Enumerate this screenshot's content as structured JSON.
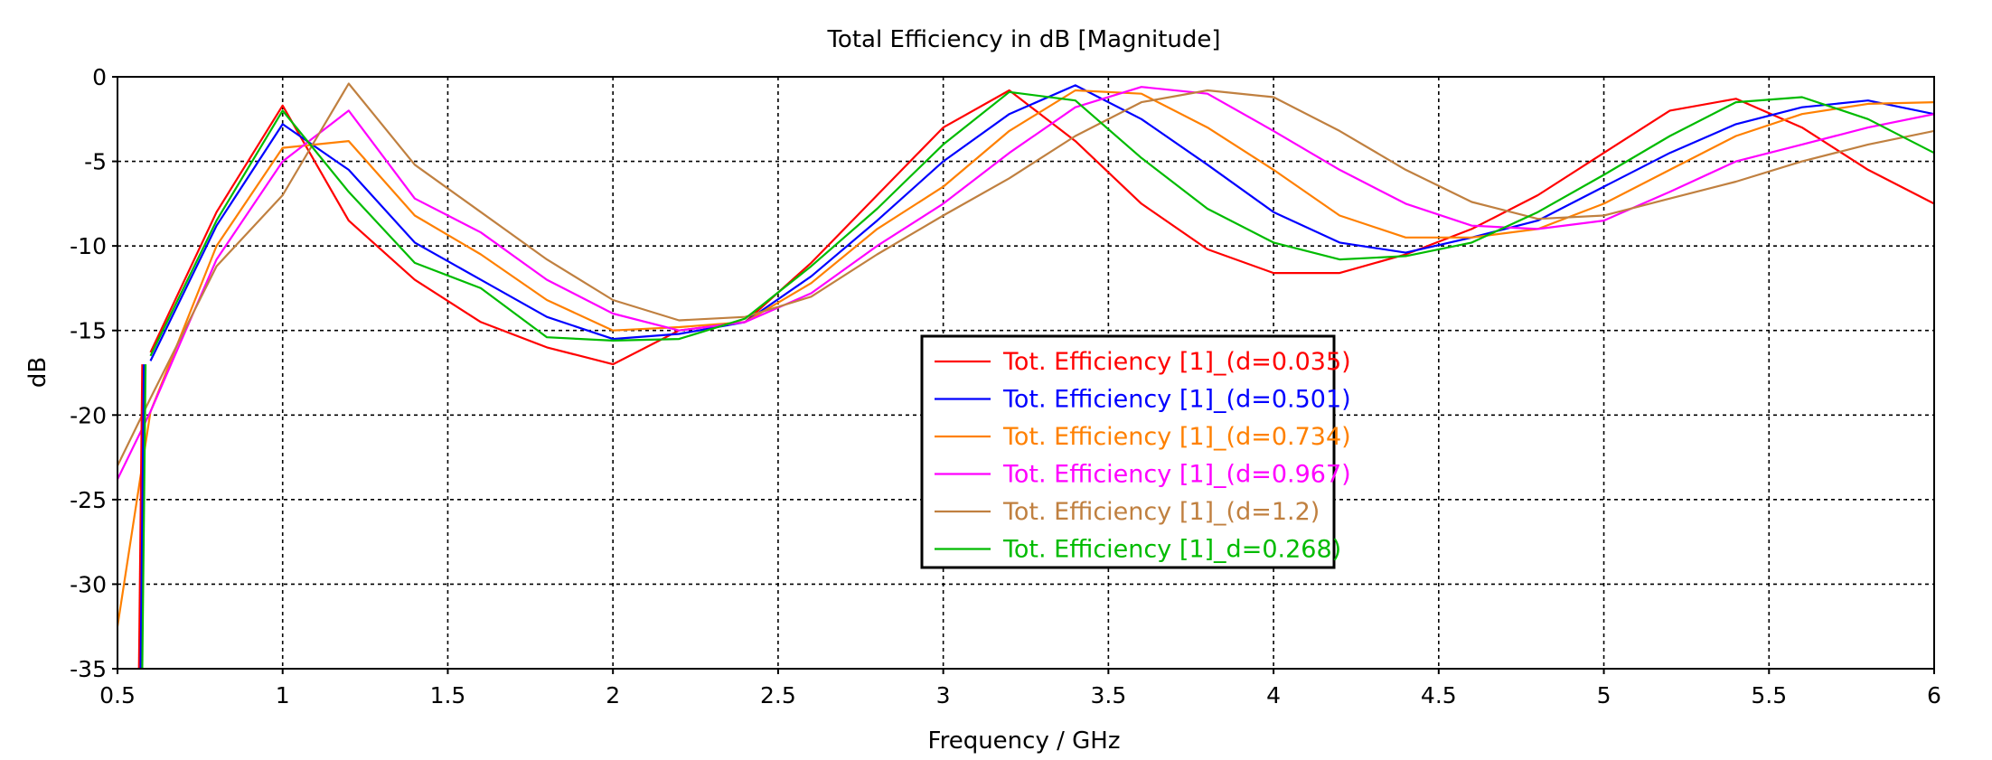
{
  "chart_data": {
    "type": "line",
    "title": "Total Efficiency in dB [Magnitude]",
    "xlabel": "Frequency / GHz",
    "ylabel": "dB",
    "xlim": [
      0.5,
      6
    ],
    "ylim": [
      -35,
      0
    ],
    "xticks": [
      0.5,
      1,
      1.5,
      2,
      2.5,
      3,
      3.5,
      4,
      4.5,
      5,
      5.5,
      6
    ],
    "yticks": [
      0,
      -5,
      -10,
      -15,
      -20,
      -25,
      -30,
      -35
    ],
    "xtick_labels": [
      "0.5",
      "1",
      "1.5",
      "2",
      "2.5",
      "3",
      "3.5",
      "4",
      "4.5",
      "5",
      "5.5",
      "6"
    ],
    "ytick_labels": [
      "0",
      "-5",
      "-10",
      "-15",
      "-20",
      "-25",
      "-30",
      "-35"
    ],
    "grid": true,
    "legend_position": "center",
    "series": [
      {
        "name": "Tot. Efficiency [1]_(d=0.035)",
        "color": "#ff0000",
        "x": [
          0.6,
          0.8,
          1.0,
          1.2,
          1.4,
          1.6,
          1.8,
          2.0,
          2.2,
          2.4,
          2.6,
          2.8,
          3.0,
          3.2,
          3.4,
          3.6,
          3.8,
          4.0,
          4.2,
          4.4,
          4.6,
          4.8,
          5.0,
          5.2,
          5.4,
          5.6,
          5.8,
          6.0
        ],
        "y": [
          -16.3,
          -8.0,
          -1.7,
          -8.5,
          -12.0,
          -14.5,
          -16.0,
          -17.0,
          -15.0,
          -14.5,
          -11.0,
          -7.0,
          -3.0,
          -0.8,
          -3.8,
          -7.5,
          -10.2,
          -11.6,
          -11.6,
          -10.5,
          -9.0,
          -7.0,
          -4.5,
          -2.0,
          -1.3,
          -3.0,
          -5.5,
          -7.5
        ]
      },
      {
        "name": "Tot. Efficiency [1]_(d=0.501)",
        "color": "#0000ff",
        "x": [
          0.6,
          0.8,
          1.0,
          1.2,
          1.4,
          1.6,
          1.8,
          2.0,
          2.2,
          2.4,
          2.6,
          2.8,
          3.0,
          3.2,
          3.4,
          3.6,
          3.8,
          4.0,
          4.2,
          4.4,
          4.6,
          4.8,
          5.0,
          5.2,
          5.4,
          5.6,
          5.8,
          6.0
        ],
        "y": [
          -16.8,
          -8.8,
          -2.8,
          -5.5,
          -9.8,
          -12.0,
          -14.2,
          -15.5,
          -15.2,
          -14.5,
          -11.8,
          -8.5,
          -5.0,
          -2.2,
          -0.5,
          -2.5,
          -5.2,
          -8.0,
          -9.8,
          -10.4,
          -9.5,
          -8.5,
          -6.5,
          -4.5,
          -2.8,
          -1.8,
          -1.4,
          -2.2
        ]
      },
      {
        "name": "Tot. Efficiency [1]_(d=0.734)",
        "color": "#ff8000",
        "x": [
          0.5,
          0.6,
          0.8,
          1.0,
          1.2,
          1.4,
          1.6,
          1.8,
          2.0,
          2.2,
          2.4,
          2.6,
          2.8,
          3.0,
          3.2,
          3.4,
          3.6,
          3.8,
          4.0,
          4.2,
          4.4,
          4.6,
          4.8,
          5.0,
          5.2,
          5.4,
          5.6,
          5.8,
          6.0
        ],
        "y": [
          -32.5,
          -19.8,
          -10.0,
          -4.2,
          -3.8,
          -8.2,
          -10.5,
          -13.2,
          -15.0,
          -14.8,
          -14.5,
          -12.2,
          -9.0,
          -6.5,
          -3.2,
          -0.8,
          -1.0,
          -3.0,
          -5.5,
          -8.2,
          -9.5,
          -9.5,
          -9.0,
          -7.5,
          -5.5,
          -3.5,
          -2.2,
          -1.6,
          -1.5
        ]
      },
      {
        "name": "Tot. Efficiency [1]_(d=0.967)",
        "color": "#ff00ff",
        "x": [
          0.5,
          0.6,
          0.8,
          1.0,
          1.2,
          1.4,
          1.6,
          1.8,
          2.0,
          2.2,
          2.4,
          2.6,
          2.8,
          3.0,
          3.2,
          3.4,
          3.6,
          3.8,
          4.0,
          4.2,
          4.4,
          4.6,
          4.8,
          5.0,
          5.2,
          5.4,
          5.6,
          5.8,
          6.0
        ],
        "y": [
          -23.8,
          -19.8,
          -10.8,
          -5.0,
          -2.0,
          -7.2,
          -9.2,
          -12.0,
          -14.0,
          -15.0,
          -14.5,
          -12.8,
          -10.0,
          -7.5,
          -4.5,
          -1.8,
          -0.6,
          -1.0,
          -3.2,
          -5.5,
          -7.5,
          -8.8,
          -9.0,
          -8.5,
          -6.8,
          -5.0,
          -4.0,
          -3.0,
          -2.2
        ]
      },
      {
        "name": "Tot. Efficiency [1]_(d=1.2)",
        "color": "#c08040",
        "x": [
          0.5,
          0.6,
          0.8,
          1.0,
          1.2,
          1.4,
          1.6,
          1.8,
          2.0,
          2.2,
          2.4,
          2.6,
          2.8,
          3.0,
          3.2,
          3.4,
          3.6,
          3.8,
          4.0,
          4.2,
          4.4,
          4.6,
          4.8,
          5.0,
          5.2,
          5.4,
          5.6,
          5.8,
          6.0
        ],
        "y": [
          -23.0,
          -19.0,
          -11.2,
          -7.0,
          -0.4,
          -5.2,
          -8.0,
          -10.8,
          -13.2,
          -14.4,
          -14.2,
          -13.0,
          -10.5,
          -8.2,
          -6.0,
          -3.5,
          -1.5,
          -0.8,
          -1.2,
          -3.2,
          -5.5,
          -7.4,
          -8.4,
          -8.2,
          -7.2,
          -6.2,
          -5.0,
          -4.0,
          -3.2
        ]
      },
      {
        "name": "Tot. Efficiency [1]_d=0.268)",
        "color": "#00bb00",
        "x": [
          0.6,
          0.8,
          1.0,
          1.2,
          1.4,
          1.6,
          1.8,
          2.0,
          2.2,
          2.4,
          2.6,
          2.8,
          3.0,
          3.2,
          3.4,
          3.6,
          3.8,
          4.0,
          4.2,
          4.4,
          4.6,
          4.8,
          5.0,
          5.2,
          5.4,
          5.6,
          5.8,
          6.0
        ],
        "y": [
          -16.5,
          -8.5,
          -2.0,
          -6.8,
          -11.0,
          -12.5,
          -15.4,
          -15.6,
          -15.5,
          -14.3,
          -11.2,
          -7.8,
          -4.0,
          -0.9,
          -1.4,
          -4.8,
          -7.8,
          -9.8,
          -10.8,
          -10.6,
          -9.8,
          -8.0,
          -5.8,
          -3.5,
          -1.5,
          -1.2,
          -2.5,
          -4.5
        ]
      }
    ]
  }
}
